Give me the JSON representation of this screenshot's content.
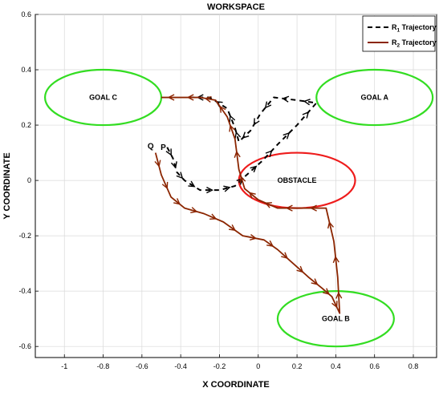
{
  "chart_data": {
    "type": "line",
    "title": "WORKSPACE",
    "xlabel": "X COORDINATE",
    "ylabel": "Y COORDINATE",
    "xlim": [
      -1.15,
      0.92
    ],
    "ylim": [
      -0.64,
      0.6
    ],
    "xticks": [
      -1,
      -0.8,
      -0.6,
      -0.4,
      -0.2,
      0,
      0.2,
      0.4,
      0.6,
      0.8
    ],
    "yticks": [
      -0.6,
      -0.4,
      -0.2,
      0,
      0.2,
      0.4,
      0.6
    ],
    "grid": true,
    "legend_position": "top-right",
    "legend": [
      {
        "label": "R",
        "sub": "1",
        "suffix": " Trajectory",
        "color": "#000000",
        "dash": true
      },
      {
        "label": "R",
        "sub": "2",
        "suffix": " Trajectory",
        "color": "#8b2500",
        "dash": false
      }
    ],
    "regions": [
      {
        "label": "GOAL A",
        "cx": 0.6,
        "cy": 0.3,
        "rx": 0.3,
        "ry": 0.1,
        "color": "#33dd22"
      },
      {
        "label": "GOAL B",
        "cx": 0.4,
        "cy": -0.5,
        "rx": 0.3,
        "ry": 0.1,
        "color": "#33dd22"
      },
      {
        "label": "GOAL C",
        "cx": -0.8,
        "cy": 0.3,
        "rx": 0.3,
        "ry": 0.1,
        "color": "#33dd22"
      },
      {
        "label": "OBSTACLE",
        "cx": 0.2,
        "cy": 0.0,
        "rx": 0.3,
        "ry": 0.1,
        "color": "#ee1c1c"
      }
    ],
    "start_labels": [
      {
        "text": "P",
        "x": -0.49,
        "y": 0.11
      },
      {
        "text": "Q",
        "x": -0.555,
        "y": 0.115
      }
    ],
    "series": [
      {
        "name": "R1 Trajectory",
        "color": "#000000",
        "dashed": true,
        "points": [
          [
            -0.47,
            0.12
          ],
          [
            -0.44,
            0.08
          ],
          [
            -0.42,
            0.03
          ],
          [
            -0.38,
            0.0
          ],
          [
            -0.3,
            -0.035
          ],
          [
            -0.2,
            -0.035
          ],
          [
            -0.12,
            -0.02
          ],
          [
            -0.06,
            0.02
          ],
          [
            0.02,
            0.07
          ],
          [
            0.1,
            0.13
          ],
          [
            0.2,
            0.2
          ],
          [
            0.3,
            0.28
          ],
          [
            0.2,
            0.29
          ],
          [
            0.08,
            0.3
          ],
          [
            0.01,
            0.24
          ],
          [
            -0.04,
            0.18
          ],
          [
            -0.1,
            0.14
          ],
          [
            -0.12,
            0.19
          ],
          [
            -0.16,
            0.26
          ],
          [
            -0.25,
            0.3
          ],
          [
            -0.35,
            0.3
          ]
        ]
      },
      {
        "name": "R2 Trajectory",
        "color": "#8b2500",
        "dashed": false,
        "points": [
          [
            -0.53,
            0.1
          ],
          [
            -0.5,
            0.02
          ],
          [
            -0.45,
            -0.06
          ],
          [
            -0.38,
            -0.1
          ],
          [
            -0.28,
            -0.12
          ],
          [
            -0.18,
            -0.15
          ],
          [
            -0.08,
            -0.2
          ],
          [
            0.03,
            -0.215
          ],
          [
            0.1,
            -0.25
          ],
          [
            0.18,
            -0.3
          ],
          [
            0.26,
            -0.35
          ],
          [
            0.33,
            -0.39
          ],
          [
            0.38,
            -0.42
          ],
          [
            0.42,
            -0.48
          ],
          [
            0.41,
            -0.35
          ],
          [
            0.39,
            -0.22
          ],
          [
            0.35,
            -0.1
          ],
          [
            0.22,
            -0.1
          ],
          [
            0.1,
            -0.1
          ],
          [
            0.0,
            -0.07
          ],
          [
            -0.07,
            -0.03
          ],
          [
            -0.1,
            0.04
          ],
          [
            -0.12,
            0.15
          ],
          [
            -0.16,
            0.23
          ],
          [
            -0.22,
            0.29
          ],
          [
            -0.3,
            0.3
          ],
          [
            -0.4,
            0.3
          ],
          [
            -0.5,
            0.3
          ]
        ]
      }
    ]
  }
}
